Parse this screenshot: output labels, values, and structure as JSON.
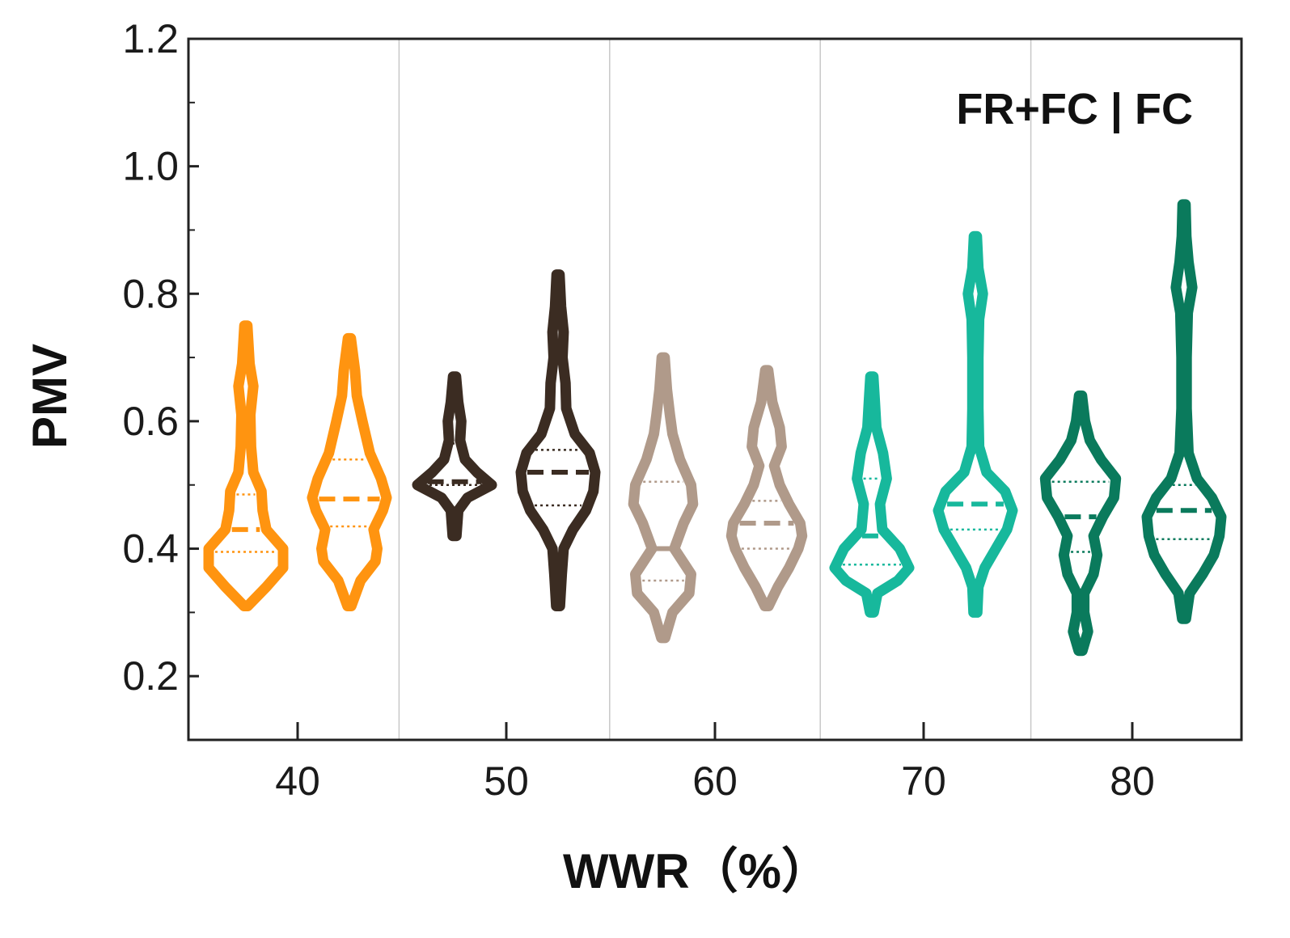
{
  "chart_data": {
    "type": "violin",
    "xlabel": "WWR（%）",
    "ylabel": "PMV",
    "annotation": "FR+FC | FC",
    "ylim": [
      0.1,
      1.2
    ],
    "yticks": [
      "0.2",
      "0.4",
      "0.6",
      "0.8",
      "1.0",
      "1.2"
    ],
    "categories": [
      "40",
      "50",
      "60",
      "70",
      "80"
    ],
    "grid": "vertical separators between WWR groups",
    "legend": "none",
    "groups": [
      {
        "category": "40",
        "color": "#ff9410",
        "violins": [
          {
            "min": 0.31,
            "max": 0.75,
            "q1": 0.395,
            "median": 0.43,
            "q3": 0.485,
            "profile": [
              [
                0.31,
                0.05
              ],
              [
                0.34,
                0.55
              ],
              [
                0.37,
                1.0
              ],
              [
                0.4,
                1.0
              ],
              [
                0.43,
                0.55
              ],
              [
                0.46,
                0.45
              ],
              [
                0.49,
                0.42
              ],
              [
                0.52,
                0.2
              ],
              [
                0.56,
                0.14
              ],
              [
                0.61,
                0.12
              ],
              [
                0.655,
                0.2
              ],
              [
                0.69,
                0.1
              ],
              [
                0.75,
                0.04
              ]
            ]
          },
          {
            "min": 0.31,
            "max": 0.73,
            "q1": 0.435,
            "median": 0.478,
            "q3": 0.54,
            "profile": [
              [
                0.31,
                0.05
              ],
              [
                0.35,
                0.3
              ],
              [
                0.38,
                0.7
              ],
              [
                0.4,
                0.75
              ],
              [
                0.43,
                0.65
              ],
              [
                0.46,
                0.9
              ],
              [
                0.48,
                1.0
              ],
              [
                0.51,
                0.85
              ],
              [
                0.55,
                0.55
              ],
              [
                0.6,
                0.35
              ],
              [
                0.64,
                0.2
              ],
              [
                0.68,
                0.15
              ],
              [
                0.73,
                0.04
              ]
            ]
          }
        ]
      },
      {
        "category": "50",
        "color": "#3b2c22",
        "violins": [
          {
            "min": 0.42,
            "max": 0.67,
            "q1": 0.5,
            "median": 0.505,
            "q3": 0.565,
            "profile": [
              [
                0.42,
                0.05
              ],
              [
                0.46,
                0.1
              ],
              [
                0.48,
                0.35
              ],
              [
                0.5,
                1.0
              ],
              [
                0.52,
                0.6
              ],
              [
                0.54,
                0.28
              ],
              [
                0.57,
                0.15
              ],
              [
                0.6,
                0.18
              ],
              [
                0.63,
                0.1
              ],
              [
                0.67,
                0.04
              ]
            ]
          },
          {
            "min": 0.31,
            "max": 0.83,
            "q1": 0.468,
            "median": 0.52,
            "q3": 0.555,
            "profile": [
              [
                0.31,
                0.05
              ],
              [
                0.36,
                0.1
              ],
              [
                0.4,
                0.15
              ],
              [
                0.43,
                0.4
              ],
              [
                0.46,
                0.75
              ],
              [
                0.49,
                0.95
              ],
              [
                0.52,
                1.0
              ],
              [
                0.55,
                0.85
              ],
              [
                0.58,
                0.45
              ],
              [
                0.62,
                0.22
              ],
              [
                0.66,
                0.2
              ],
              [
                0.7,
                0.12
              ],
              [
                0.74,
                0.15
              ],
              [
                0.78,
                0.08
              ],
              [
                0.83,
                0.04
              ]
            ]
          }
        ]
      },
      {
        "category": "60",
        "color": "#b09a8a",
        "violins": [
          {
            "min": 0.26,
            "max": 0.7,
            "q1": 0.35,
            "median": 0.4,
            "q3": 0.505,
            "profile": [
              [
                0.26,
                0.05
              ],
              [
                0.3,
                0.25
              ],
              [
                0.33,
                0.7
              ],
              [
                0.36,
                0.75
              ],
              [
                0.4,
                0.3
              ],
              [
                0.44,
                0.55
              ],
              [
                0.47,
                0.8
              ],
              [
                0.5,
                0.75
              ],
              [
                0.54,
                0.45
              ],
              [
                0.58,
                0.25
              ],
              [
                0.61,
                0.18
              ],
              [
                0.65,
                0.1
              ],
              [
                0.7,
                0.04
              ]
            ]
          },
          {
            "min": 0.31,
            "max": 0.68,
            "q1": 0.4,
            "median": 0.44,
            "q3": 0.475,
            "profile": [
              [
                0.31,
                0.05
              ],
              [
                0.34,
                0.3
              ],
              [
                0.37,
                0.6
              ],
              [
                0.4,
                0.85
              ],
              [
                0.42,
                0.95
              ],
              [
                0.44,
                0.9
              ],
              [
                0.47,
                0.6
              ],
              [
                0.5,
                0.35
              ],
              [
                0.53,
                0.2
              ],
              [
                0.56,
                0.4
              ],
              [
                0.59,
                0.35
              ],
              [
                0.63,
                0.15
              ],
              [
                0.68,
                0.04
              ]
            ]
          }
        ]
      },
      {
        "category": "70",
        "color": "#17b89c",
        "violins": [
          {
            "min": 0.3,
            "max": 0.67,
            "q1": 0.375,
            "median": 0.42,
            "q3": 0.51,
            "profile": [
              [
                0.3,
                0.05
              ],
              [
                0.33,
                0.15
              ],
              [
                0.35,
                0.7
              ],
              [
                0.37,
                1.0
              ],
              [
                0.4,
                0.75
              ],
              [
                0.43,
                0.28
              ],
              [
                0.47,
                0.22
              ],
              [
                0.51,
                0.4
              ],
              [
                0.55,
                0.3
              ],
              [
                0.59,
                0.12
              ],
              [
                0.63,
                0.08
              ],
              [
                0.67,
                0.04
              ]
            ]
          },
          {
            "min": 0.3,
            "max": 0.89,
            "q1": 0.43,
            "median": 0.47,
            "q3": 0.55,
            "profile": [
              [
                0.3,
                0.05
              ],
              [
                0.34,
                0.08
              ],
              [
                0.37,
                0.25
              ],
              [
                0.4,
                0.55
              ],
              [
                0.43,
                0.85
              ],
              [
                0.46,
                1.0
              ],
              [
                0.49,
                0.8
              ],
              [
                0.52,
                0.3
              ],
              [
                0.56,
                0.1
              ],
              [
                0.62,
                0.08
              ],
              [
                0.7,
                0.08
              ],
              [
                0.76,
                0.1
              ],
              [
                0.8,
                0.2
              ],
              [
                0.84,
                0.08
              ],
              [
                0.89,
                0.04
              ]
            ]
          }
        ]
      },
      {
        "category": "80",
        "color": "#0a7a5c",
        "violins": [
          {
            "min": 0.24,
            "max": 0.64,
            "q1": 0.395,
            "median": 0.45,
            "q3": 0.505,
            "profile": [
              [
                0.24,
                0.05
              ],
              [
                0.27,
                0.2
              ],
              [
                0.3,
                0.1
              ],
              [
                0.33,
                0.1
              ],
              [
                0.36,
                0.35
              ],
              [
                0.39,
                0.45
              ],
              [
                0.42,
                0.35
              ],
              [
                0.45,
                0.6
              ],
              [
                0.48,
                0.9
              ],
              [
                0.51,
                0.95
              ],
              [
                0.54,
                0.55
              ],
              [
                0.57,
                0.25
              ],
              [
                0.6,
                0.12
              ],
              [
                0.64,
                0.04
              ]
            ]
          },
          {
            "min": 0.29,
            "max": 0.94,
            "q1": 0.415,
            "median": 0.46,
            "q3": 0.5,
            "profile": [
              [
                0.29,
                0.05
              ],
              [
                0.33,
                0.15
              ],
              [
                0.36,
                0.5
              ],
              [
                0.39,
                0.8
              ],
              [
                0.42,
                0.95
              ],
              [
                0.45,
                1.0
              ],
              [
                0.48,
                0.75
              ],
              [
                0.51,
                0.35
              ],
              [
                0.55,
                0.12
              ],
              [
                0.62,
                0.07
              ],
              [
                0.7,
                0.07
              ],
              [
                0.77,
                0.1
              ],
              [
                0.81,
                0.22
              ],
              [
                0.85,
                0.12
              ],
              [
                0.89,
                0.06
              ],
              [
                0.94,
                0.04
              ]
            ]
          }
        ]
      }
    ]
  }
}
